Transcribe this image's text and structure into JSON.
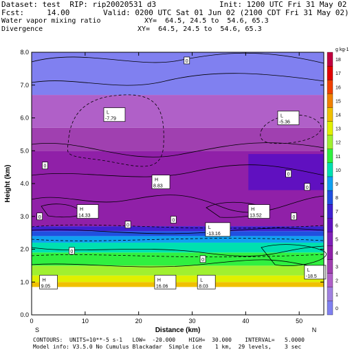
{
  "header": {
    "line1_left": "Dataset: test  RIP: rip20020531 d3",
    "line1_right": "Init: 1200 UTC Fri 31 May 02",
    "line2_left": "Fcst:     14.00",
    "line2_right": "Valid: 0200 UTC Sat 01 Jun 02 (2100 CDT Fri 31 May 02)",
    "line3_left": "Water vapor mixing ratio",
    "line3_right": "XY=  64.5, 24.5 to  54.6, 65.3",
    "line4_left": "Divergence",
    "line4_right": "XY=  64.5, 24.5 to  54.6, 65.3"
  },
  "chart_data": {
    "type": "heatmap",
    "xlabel": "Distance (km)",
    "ylabel": "Height (km)",
    "xlim": [
      0,
      54.6
    ],
    "ylim": [
      0.0,
      8.0
    ],
    "x_ticks": [
      0,
      10,
      20,
      30,
      40,
      50
    ],
    "y_ticks": [
      0.0,
      1.0,
      2.0,
      3.0,
      4.0,
      5.0,
      6.0,
      7.0,
      8.0
    ],
    "x_end_labels": {
      "left": "S",
      "right": "N"
    },
    "colorbar": {
      "unit_label": "g kg-1",
      "levels": [
        0,
        1,
        2,
        3,
        4,
        5,
        6,
        7,
        8,
        9,
        10,
        11,
        12,
        13,
        14,
        15,
        16,
        17,
        18
      ],
      "colors": [
        "#8080f0",
        "#a080e0",
        "#b060c8",
        "#a040b0",
        "#9020a8",
        "#8020b8",
        "#6010c0",
        "#4020d0",
        "#2050e0",
        "#10a0f0",
        "#00e0b0",
        "#30f040",
        "#a0f030",
        "#e0f000",
        "#f0c000",
        "#f08000",
        "#f04000",
        "#e00000",
        "#c00040"
      ]
    },
    "bands": [
      {
        "y0": 0.85,
        "y1": 1.0,
        "level": 14
      },
      {
        "y0": 1.0,
        "y1": 1.2,
        "level": 13
      },
      {
        "y0": 1.2,
        "y1": 1.5,
        "level": 12
      },
      {
        "y0": 1.5,
        "y1": 1.9,
        "level": 11
      },
      {
        "y0": 1.9,
        "y1": 2.2,
        "level": 10
      },
      {
        "y0": 2.2,
        "y1": 2.4,
        "level": 9
      },
      {
        "y0": 2.4,
        "y1": 2.55,
        "level": 8
      },
      {
        "y0": 2.55,
        "y1": 2.7,
        "level": 7
      },
      {
        "y0": 2.7,
        "y1": 5.0,
        "level": 4
      },
      {
        "y0": 5.0,
        "y1": 5.7,
        "level": 3
      },
      {
        "y0": 5.7,
        "y1": 6.7,
        "level": 2
      },
      {
        "y0": 6.7,
        "y1": 8.0,
        "level": 0
      }
    ],
    "patch": {
      "x0": 40.5,
      "x1": 54.6,
      "y0": 3.8,
      "y1": 4.9,
      "level": 6
    },
    "contour_labels": [
      {
        "text": "0",
        "x": 29,
        "y": 7.75
      },
      {
        "text": "0",
        "x": 2.5,
        "y": 4.55
      },
      {
        "text": "0",
        "x": 48,
        "y": 4.3
      },
      {
        "text": "0",
        "x": 51.5,
        "y": 3.9
      },
      {
        "text": "0",
        "x": 1.5,
        "y": 3.0
      },
      {
        "text": "0",
        "x": 26.5,
        "y": 2.9
      },
      {
        "text": "0",
        "x": 18,
        "y": 2.75
      },
      {
        "text": "0",
        "x": 7.5,
        "y": 1.95
      },
      {
        "text": "0",
        "x": 32,
        "y": 1.7
      },
      {
        "text": "0",
        "x": 49,
        "y": 3.0
      }
    ],
    "extrema": [
      {
        "kind": "L",
        "value": "-7.79",
        "x": 14,
        "y": 6.1
      },
      {
        "kind": "L",
        "value": "-5.36",
        "x": 46.5,
        "y": 6.0
      },
      {
        "kind": "H",
        "value": "8.83",
        "x": 23,
        "y": 4.05
      },
      {
        "kind": "H",
        "value": "14.33",
        "x": 9,
        "y": 3.15
      },
      {
        "kind": "H",
        "value": "13.52",
        "x": 41,
        "y": 3.15
      },
      {
        "kind": "L",
        "value": "-13.16",
        "x": 33,
        "y": 2.6
      },
      {
        "kind": "L",
        "value": "-18.5",
        "x": 51.5,
        "y": 1.3
      },
      {
        "kind": "H",
        "value": "9.05",
        "x": 2,
        "y": 1.0
      },
      {
        "kind": "H",
        "value": "16.06",
        "x": 23.5,
        "y": 1.0
      },
      {
        "kind": "L",
        "value": "8.03",
        "x": 31.5,
        "y": 1.0
      }
    ]
  },
  "footer": {
    "line1": "CONTOURS:  UNITS=10**-5 s-1   LOW=  -20.000    HIGH=  30.000    INTERVAL=   5.0000",
    "line2": "Model info: V3.5.0 No Cumulus Blackadar  Simple ice    1 km,  29 levels,    3 sec"
  }
}
